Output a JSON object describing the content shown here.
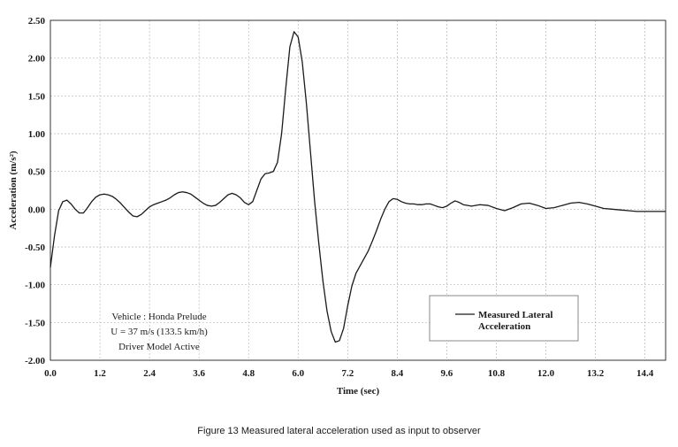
{
  "caption": "Figure 13  Measured lateral acceleration used as input to observer",
  "chart_data": {
    "type": "line",
    "xlabel": "Time (sec)",
    "ylabel": "Acceleration (m/s²)",
    "xlim": [
      0,
      14.9
    ],
    "ylim": [
      -2.0,
      2.5
    ],
    "xticks": [
      "0.0",
      "1.2",
      "2.4",
      "3.6",
      "4.8",
      "6.0",
      "7.2",
      "8.4",
      "9.6",
      "10.8",
      "12.0",
      "13.2",
      "14.4"
    ],
    "yticks": [
      "2.50",
      "2.00",
      "1.50",
      "1.00",
      "0.50",
      "0.00",
      "-0.50",
      "-1.00",
      "-1.50",
      "-2.00"
    ],
    "grid": true,
    "legend_position": "bottom-right",
    "annotation": [
      "Vehicle : Honda Prelude",
      "U = 37 m/s (133.5 km/h)",
      "Driver Model Active"
    ],
    "series": [
      {
        "name": "Measured Lateral Acceleration",
        "color": "#1a1a1a",
        "x": [
          0.0,
          0.1,
          0.2,
          0.3,
          0.4,
          0.5,
          0.6,
          0.7,
          0.8,
          0.9,
          1.0,
          1.1,
          1.2,
          1.3,
          1.4,
          1.5,
          1.6,
          1.7,
          1.8,
          1.9,
          2.0,
          2.1,
          2.2,
          2.3,
          2.4,
          2.5,
          2.6,
          2.7,
          2.8,
          2.9,
          3.0,
          3.1,
          3.2,
          3.3,
          3.4,
          3.5,
          3.6,
          3.7,
          3.8,
          3.9,
          4.0,
          4.1,
          4.2,
          4.3,
          4.4,
          4.5,
          4.6,
          4.7,
          4.8,
          4.9,
          5.0,
          5.1,
          5.2,
          5.3,
          5.4,
          5.5,
          5.6,
          5.7,
          5.8,
          5.9,
          6.0,
          6.1,
          6.2,
          6.3,
          6.4,
          6.5,
          6.6,
          6.7,
          6.8,
          6.9,
          7.0,
          7.1,
          7.2,
          7.3,
          7.4,
          7.5,
          7.6,
          7.7,
          7.8,
          7.9,
          8.0,
          8.1,
          8.2,
          8.3,
          8.4,
          8.5,
          8.6,
          8.7,
          8.8,
          8.9,
          9.0,
          9.1,
          9.2,
          9.3,
          9.4,
          9.5,
          9.6,
          9.7,
          9.8,
          9.9,
          10.0,
          10.2,
          10.4,
          10.6,
          10.8,
          11.0,
          11.2,
          11.4,
          11.6,
          11.8,
          12.0,
          12.2,
          12.4,
          12.6,
          12.8,
          13.0,
          13.2,
          13.4,
          13.6,
          13.8,
          14.0,
          14.2,
          14.4,
          14.6,
          14.9
        ],
        "y": [
          -0.77,
          -0.35,
          -0.02,
          0.1,
          0.12,
          0.07,
          0.0,
          -0.05,
          -0.05,
          0.02,
          0.1,
          0.16,
          0.19,
          0.2,
          0.19,
          0.17,
          0.13,
          0.08,
          0.02,
          -0.04,
          -0.09,
          -0.1,
          -0.07,
          -0.02,
          0.03,
          0.06,
          0.08,
          0.1,
          0.12,
          0.15,
          0.19,
          0.22,
          0.23,
          0.22,
          0.2,
          0.16,
          0.12,
          0.08,
          0.05,
          0.04,
          0.05,
          0.09,
          0.14,
          0.19,
          0.21,
          0.19,
          0.15,
          0.09,
          0.06,
          0.1,
          0.25,
          0.4,
          0.47,
          0.48,
          0.5,
          0.62,
          1.0,
          1.6,
          2.15,
          2.35,
          2.28,
          1.95,
          1.4,
          0.75,
          0.1,
          -0.45,
          -0.95,
          -1.35,
          -1.62,
          -1.76,
          -1.74,
          -1.58,
          -1.28,
          -1.02,
          -0.85,
          -0.75,
          -0.65,
          -0.55,
          -0.42,
          -0.28,
          -0.13,
          0.0,
          0.1,
          0.14,
          0.13,
          0.1,
          0.08,
          0.07,
          0.07,
          0.06,
          0.06,
          0.07,
          0.07,
          0.05,
          0.03,
          0.02,
          0.04,
          0.08,
          0.11,
          0.09,
          0.06,
          0.04,
          0.06,
          0.05,
          0.01,
          -0.02,
          0.02,
          0.07,
          0.08,
          0.05,
          0.01,
          0.02,
          0.05,
          0.08,
          0.09,
          0.07,
          0.04,
          0.01,
          0.0,
          -0.01,
          -0.02,
          -0.03,
          -0.03,
          -0.03,
          -0.03
        ]
      }
    ]
  }
}
